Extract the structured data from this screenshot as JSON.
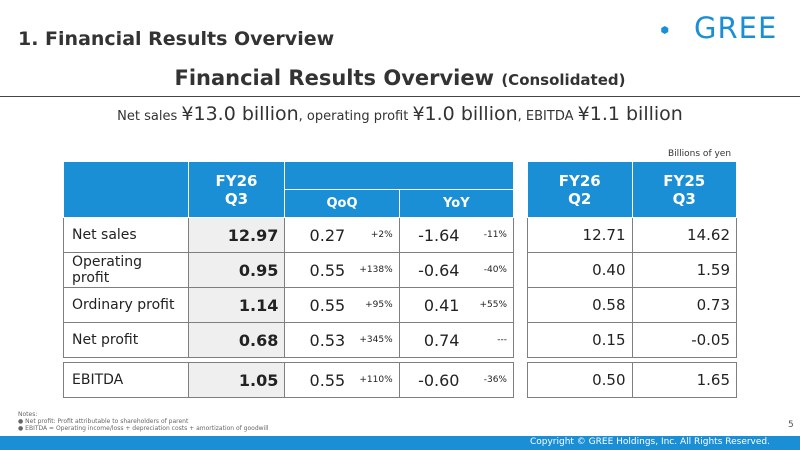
{
  "header": {
    "section_title": "1. Financial Results Overview",
    "logo_text": "GREE",
    "main_title": "Financial Results Overview",
    "main_title_sub": "(Consolidated)"
  },
  "summary": {
    "net_sales_label": "Net sales ",
    "net_sales_value": "¥13.0 billion",
    "sep1": ", operating profit ",
    "operating_profit_value": "¥1.0 billion",
    "sep2": ", EBITDA ",
    "ebitda_value": "¥1.1 billion"
  },
  "unit_note": "Billions of yen",
  "table": {
    "headers": {
      "current": "FY26\nQ3",
      "qoq": "QoQ",
      "yoy": "YoY",
      "prev_q": "FY26\nQ2",
      "prev_y": "FY25\nQ3"
    },
    "rows": [
      {
        "label": "Net sales",
        "current": "12.97",
        "qoq": "0.27",
        "qoq_pct": "+2%",
        "yoy": "-1.64",
        "yoy_pct": "-11%",
        "prev_q": "12.71",
        "prev_y": "14.62"
      },
      {
        "label": "Operating profit",
        "current": "0.95",
        "qoq": "0.55",
        "qoq_pct": "+138%",
        "yoy": "-0.64",
        "yoy_pct": "-40%",
        "prev_q": "0.40",
        "prev_y": "1.59"
      },
      {
        "label": "Ordinary profit",
        "current": "1.14",
        "qoq": "0.55",
        "qoq_pct": "+95%",
        "yoy": "0.41",
        "yoy_pct": "+55%",
        "prev_q": "0.58",
        "prev_y": "0.73"
      },
      {
        "label": "Net profit",
        "current": "0.68",
        "qoq": "0.53",
        "qoq_pct": "+345%",
        "yoy": "0.74",
        "yoy_pct": "---",
        "prev_q": "0.15",
        "prev_y": "-0.05"
      },
      {
        "label": "EBITDA",
        "current": "1.05",
        "qoq": "0.55",
        "qoq_pct": "+110%",
        "yoy": "-0.60",
        "yoy_pct": "-36%",
        "prev_q": "0.50",
        "prev_y": "1.65"
      }
    ]
  },
  "notes": {
    "title": "Notes:",
    "items": [
      "Net profit: Profit attributable to shareholders of parent",
      "EBITDA = Operating income/loss + depreciation costs + amortization of goodwill"
    ]
  },
  "page_number": "5",
  "footer": "Copyright © GREE Holdings, Inc. All Rights Reserved.",
  "colors": {
    "accent": "#1b8fd6",
    "highlight_cell": "#efefef"
  }
}
